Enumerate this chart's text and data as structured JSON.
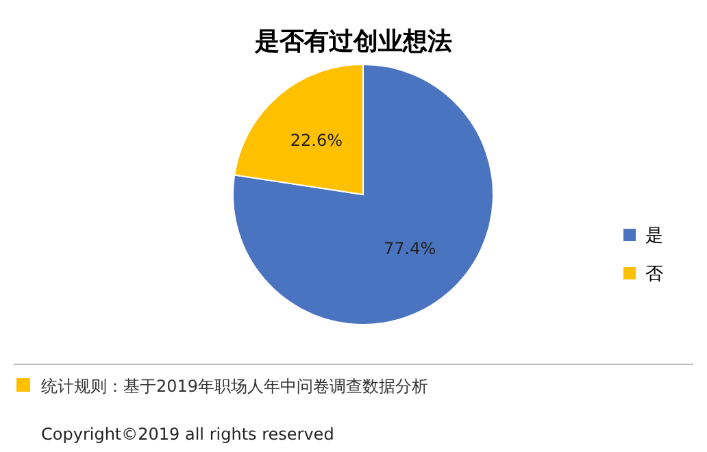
{
  "chart_data": {
    "type": "pie",
    "title": "是否有过创业想法",
    "categories": [
      "是",
      "否"
    ],
    "values": [
      77.4,
      22.6
    ],
    "colors": [
      "#4a74c0",
      "#ffc000"
    ],
    "value_labels": [
      "77.4%",
      "22.6%"
    ],
    "legend": "right",
    "annotations": [
      "统计规则：基于2019年职场人年中问卷调查数据分析",
      "Copyright©2019 all rights reserved"
    ]
  }
}
